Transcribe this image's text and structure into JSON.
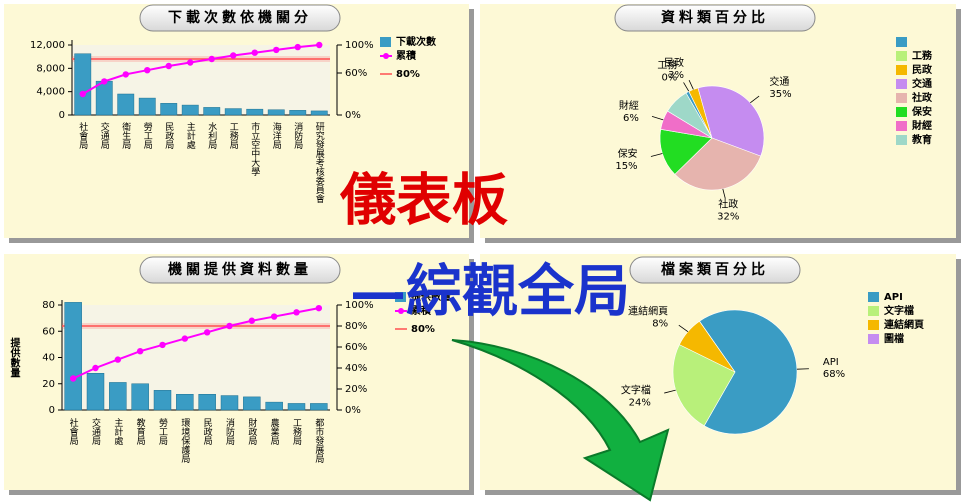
{
  "chart_data": [
    {
      "type": "bar",
      "title": "下載次數依機關分",
      "categories": [
        "社會局",
        "交通局",
        "衛生局",
        "勞工局",
        "民政局",
        "主計處",
        "水利局",
        "工務局",
        "市立空中大學",
        "海洋局",
        "消防局",
        "研究發展考核委員會"
      ],
      "series": [
        {
          "name": "下載次數",
          "color": "#3a9cc4",
          "values": [
            10500,
            5800,
            3600,
            2900,
            2000,
            1700,
            1300,
            1100,
            1000,
            900,
            800,
            700
          ]
        },
        {
          "name": "累積",
          "color": "#ff00ff",
          "axis": "y2",
          "values": [
            30,
            48,
            58,
            64,
            70,
            75,
            80,
            85,
            89,
            93,
            97,
            100
          ]
        }
      ],
      "threshold": {
        "name": "80%",
        "value": 80,
        "color": "#ff5050"
      },
      "ylim": [
        0,
        12000
      ],
      "yticks": [
        0,
        {
          "value": 4000,
          "label": "4,000"
        },
        {
          "value": 8000,
          "label": "8,000"
        },
        {
          "value": 12000,
          "label": "12,000"
        }
      ],
      "y2lim": [
        0,
        100
      ],
      "y2ticks": [
        {
          "value": 0,
          "label": "0%"
        },
        {
          "value": 60,
          "label": "60%"
        },
        {
          "value": 100,
          "label": "100%"
        }
      ]
    },
    {
      "type": "pie",
      "title": "資料類百分比",
      "categories": [
        null,
        "工務",
        "民政",
        "交通",
        "社政",
        "保安",
        "財經",
        "教育"
      ],
      "values": [
        1,
        0,
        3,
        35,
        32,
        15,
        6,
        8
      ],
      "value_labels": [
        null,
        "0%",
        "3%",
        "35%",
        "32%",
        "15%",
        "6%",
        null
      ],
      "colors": [
        "#3a9cc4",
        "#b8f07a",
        "#f5b800",
        "#c58cf0",
        "#e6b4ae",
        "#22dd22",
        "#f06ec8",
        "#9ed8c8"
      ]
    },
    {
      "type": "bar",
      "title": "機關提供資料數量",
      "ylabel": "提供數量",
      "categories": [
        "社會局",
        "交通局",
        "主計處",
        "教育局",
        "勞工局",
        "環境保護局",
        "民政局",
        "消防局",
        "財政局",
        "農業局",
        "工務局",
        "都市發展局"
      ],
      "series": [
        {
          "name": "提供數量",
          "color": "#3a9cc4",
          "values": [
            82,
            28,
            21,
            20,
            15,
            12,
            12,
            11,
            10,
            6,
            5,
            5
          ]
        },
        {
          "name": "累積",
          "color": "#ff00ff",
          "axis": "y2",
          "values": [
            30,
            40,
            48,
            56,
            62,
            68,
            74,
            80,
            85,
            89,
            93,
            97
          ]
        }
      ],
      "threshold": {
        "name": "80%",
        "value": 80,
        "color": "#ff5050"
      },
      "ylim": [
        0,
        80
      ],
      "yticks": [
        0,
        20,
        40,
        60,
        80
      ],
      "y2lim": [
        0,
        100
      ],
      "y2ticks": [
        {
          "value": 0,
          "label": "0%"
        },
        {
          "value": 20,
          "label": "20%"
        },
        {
          "value": 40,
          "label": "40%"
        },
        {
          "value": 60,
          "label": "60%"
        },
        {
          "value": 80,
          "label": "80%"
        },
        {
          "value": 100,
          "label": "100%"
        }
      ]
    },
    {
      "type": "pie",
      "title": "檔案類百分比",
      "categories": [
        "API",
        "文字檔",
        "連結網頁",
        "圖檔"
      ],
      "values": [
        68,
        24,
        8,
        0
      ],
      "value_labels": [
        "68%",
        "24%",
        "8%",
        null
      ],
      "colors": [
        "#3a9cc4",
        "#b8f07a",
        "#f5b800",
        "#c58cf0"
      ]
    }
  ],
  "overlay": {
    "title": "儀表板",
    "subtitle": "—綜觀全局"
  }
}
